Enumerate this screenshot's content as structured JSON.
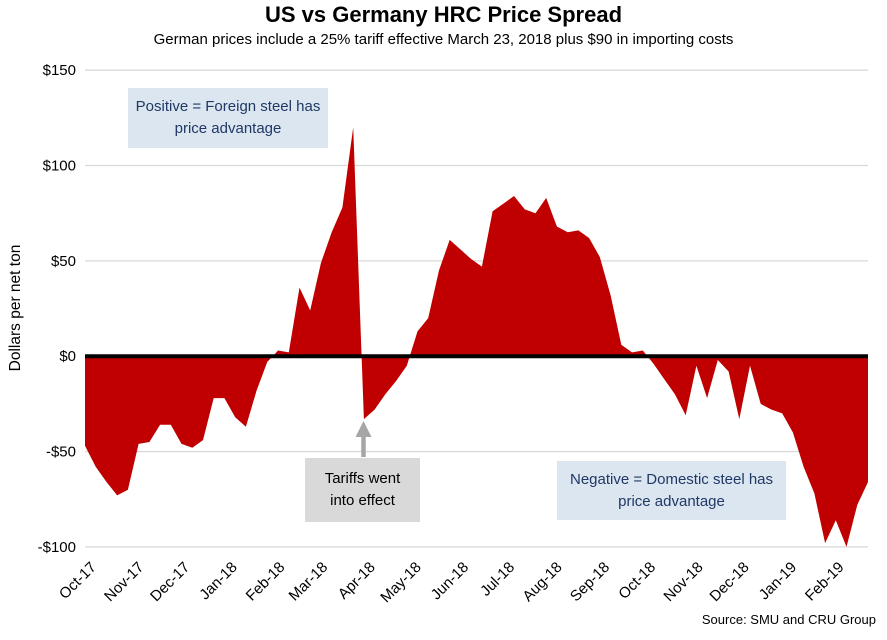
{
  "title": "US vs Germany HRC Price Spread",
  "subtitle": "German prices include a 25% tariff effective March 23, 2018 plus $90 in importing costs",
  "source": "Source: SMU and CRU Group",
  "annotations": {
    "positive_box": "Positive = Foreign steel has price advantage",
    "tariff_box": "Tariffs went into effect",
    "negative_box": "Negative = Domestic steel has price advantage"
  },
  "chart_data": {
    "type": "area",
    "title": "US vs Germany HRC Price Spread",
    "xlabel": "",
    "ylabel": "Dollars per net ton",
    "ylim": [
      -100,
      150
    ],
    "grid": "horizontal gridlines only",
    "legend": "none",
    "baseline": 0,
    "ytick_values": [
      150,
      100,
      50,
      0,
      -50,
      -100
    ],
    "ytick_labels": [
      "$150",
      "$100",
      "$50",
      "$0",
      "-$50",
      "-$100"
    ],
    "x_tick_labels": [
      "Oct-17",
      "Nov-17",
      "Dec-17",
      "Jan-18",
      "Feb-18",
      "Mar-18",
      "Apr-18",
      "May-18",
      "Jun-18",
      "Jul-18",
      "Aug-18",
      "Sep-18",
      "Oct-18",
      "Nov-18",
      "Dec-18",
      "Jan-19",
      "Feb-19"
    ],
    "x_tick_week_positions": [
      0,
      4.43,
      8.71,
      13.14,
      17.57,
      21.57,
      26.0,
      30.29,
      34.71,
      39.0,
      43.43,
      47.86,
      52.14,
      56.57,
      60.86,
      65.29,
      69.71
    ],
    "x_unit": "weekly observations; week index 0 = first week of Oct-2017",
    "series": [
      {
        "name": "US minus Germany HRC price spread ($ per net ton)",
        "values": [
          -47,
          -58,
          -66,
          -73,
          -70,
          -46,
          -45,
          -36,
          -36,
          -46,
          -48,
          -44,
          -22,
          -22,
          -32,
          -37,
          -18,
          -3,
          3,
          2,
          36,
          24,
          49,
          65,
          78,
          120,
          -33,
          -28,
          -20,
          -13,
          -5,
          13,
          20,
          45,
          61,
          56,
          51,
          47,
          76,
          80,
          84,
          77,
          75,
          83,
          68,
          65,
          66,
          62,
          52,
          32,
          6,
          2,
          3,
          -4,
          -12,
          -20,
          -31,
          -5,
          -22,
          -2,
          -8,
          -33,
          -5,
          -25,
          -28,
          -30,
          -40,
          -58,
          -72,
          -98,
          -86,
          -100,
          -78,
          -66
        ]
      }
    ],
    "key_points": {
      "peak_value": 120,
      "peak_week_index": 25,
      "tariff_dip_value": -33,
      "tariff_dip_week_index": 26,
      "min_value": -100
    },
    "colors": {
      "area": "#C00000",
      "zero_line": "#000000",
      "gridline": "#D9D9D9",
      "annotation_blue_bg": "#DCE6F1",
      "annotation_blue_text": "#1F3864",
      "annotation_gray_bg": "#D9D9D9",
      "arrow": "#A6A6A6"
    }
  }
}
